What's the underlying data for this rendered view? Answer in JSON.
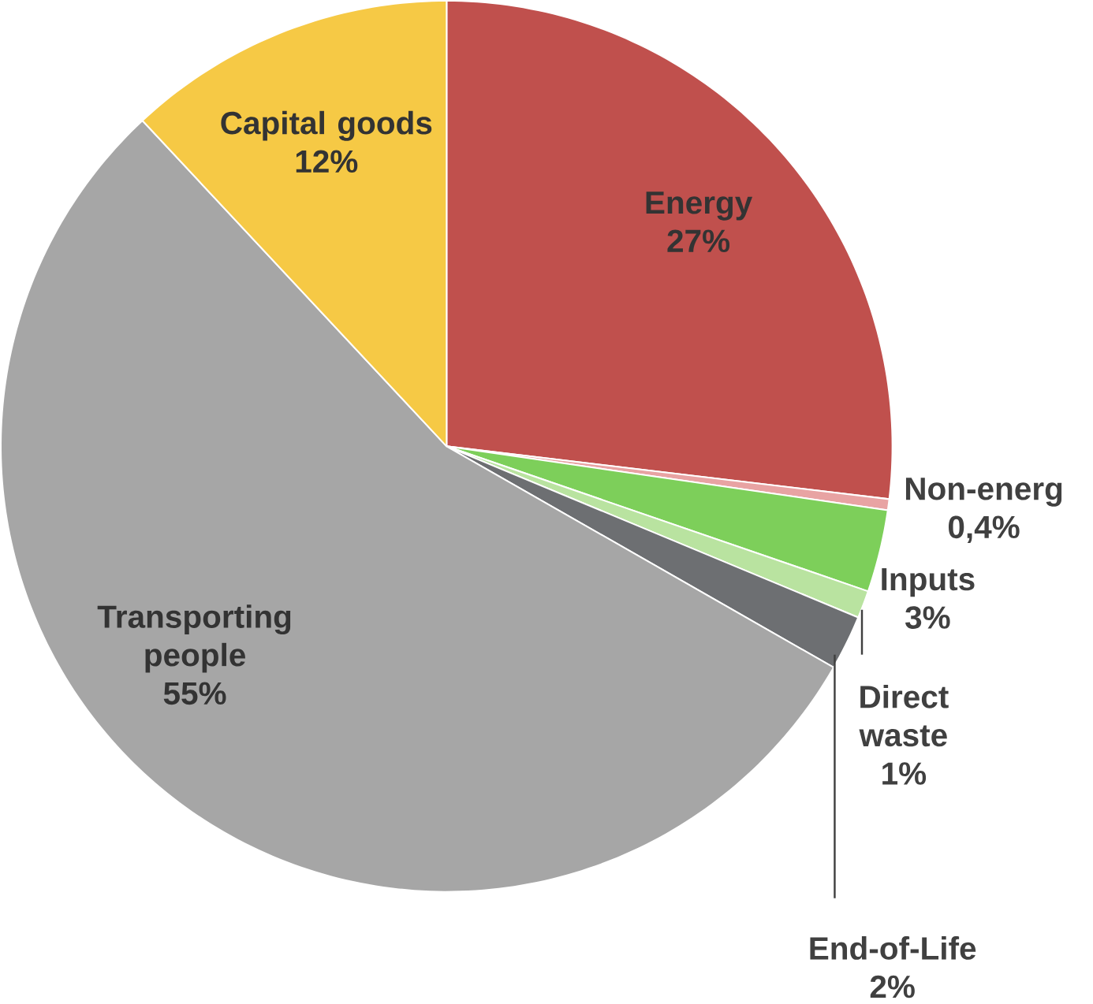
{
  "chart_data": {
    "type": "pie",
    "categories": [
      "Energy",
      "Non-energ",
      "Inputs",
      "Direct waste",
      "End-of-Life",
      "Transporting people",
      "Capital goods"
    ],
    "values": [
      27,
      0.4,
      3,
      1,
      2,
      55,
      12
    ],
    "value_labels": [
      "27%",
      "0,4%",
      "3%",
      "1%",
      "2%",
      "55%",
      "12%"
    ],
    "colors": [
      "#c0504d",
      "#e8a3a3",
      "#7dcf5a",
      "#b9e3a0",
      "#6d6f72",
      "#a6a6a6",
      "#f6c945"
    ]
  }
}
